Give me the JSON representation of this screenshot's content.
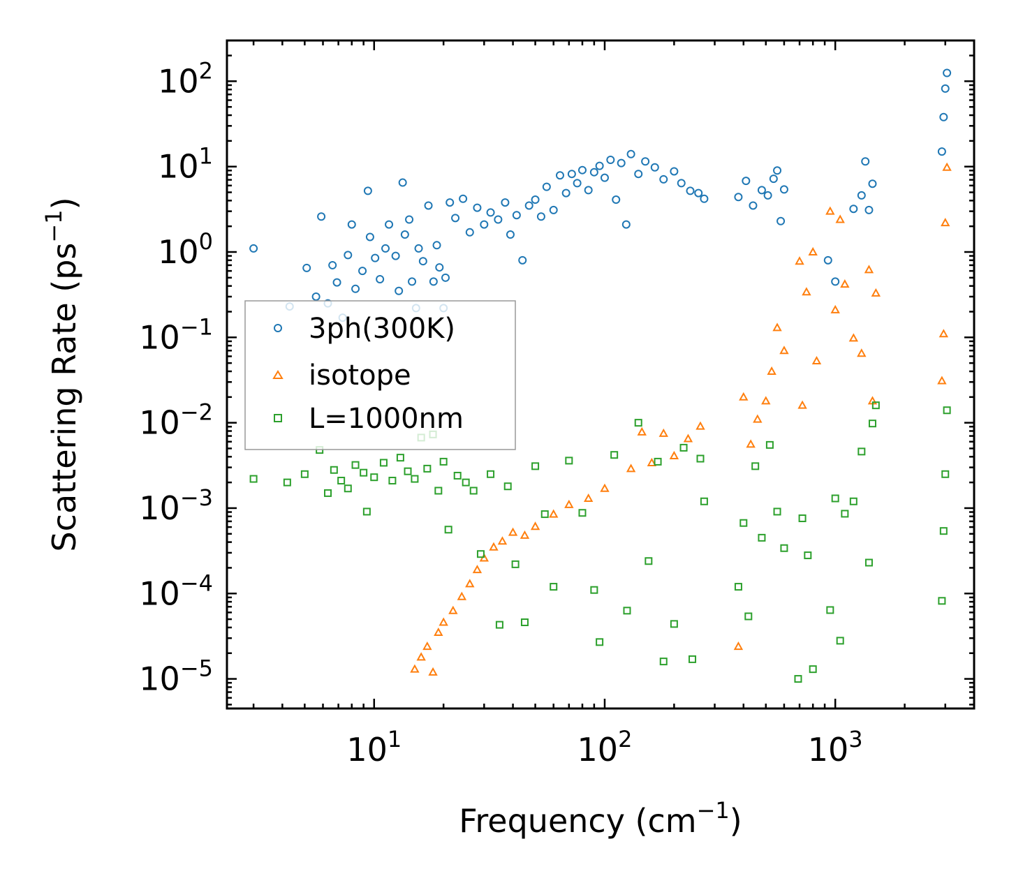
{
  "chart_data": {
    "type": "scatter",
    "title": "",
    "xlabel": "Frequency (cm",
    "xlabel_exp": "−1",
    "ylabel": "Scattering Rate (ps",
    "ylabel_exp": "−1",
    "x_scale": "log",
    "y_scale": "log",
    "xlim": [
      2.3,
      4000
    ],
    "ylim": [
      4.5e-06,
      300
    ],
    "x_ticks": [
      {
        "value": 10,
        "base": "10",
        "exp": "1"
      },
      {
        "value": 100,
        "base": "10",
        "exp": "2"
      },
      {
        "value": 1000,
        "base": "10",
        "exp": "3"
      }
    ],
    "y_ticks": [
      {
        "value": 1e-05,
        "base": "10",
        "exp": "−5"
      },
      {
        "value": 0.0001,
        "base": "10",
        "exp": "−4"
      },
      {
        "value": 0.001,
        "base": "10",
        "exp": "−3"
      },
      {
        "value": 0.01,
        "base": "10",
        "exp": "−2"
      },
      {
        "value": 0.1,
        "base": "10",
        "exp": "−1"
      },
      {
        "value": 1,
        "base": "10",
        "exp": "0"
      },
      {
        "value": 10,
        "base": "10",
        "exp": "1"
      },
      {
        "value": 100,
        "base": "10",
        "exp": "2"
      }
    ],
    "legend_position": "center-left",
    "series": [
      {
        "name": "3ph(300K)",
        "marker": "circle",
        "color": "#1f77b4",
        "points": [
          [
            3.0,
            1.1
          ],
          [
            4.3,
            0.23
          ],
          [
            5.1,
            0.65
          ],
          [
            5.6,
            0.3
          ],
          [
            5.9,
            2.6
          ],
          [
            6.3,
            0.25
          ],
          [
            6.6,
            0.7
          ],
          [
            6.9,
            0.44
          ],
          [
            7.3,
            0.17
          ],
          [
            7.7,
            0.92
          ],
          [
            8.0,
            2.1
          ],
          [
            8.3,
            0.37
          ],
          [
            8.9,
            0.6
          ],
          [
            9.4,
            5.2
          ],
          [
            9.6,
            1.5
          ],
          [
            10.1,
            0.85
          ],
          [
            10.6,
            0.48
          ],
          [
            11.2,
            1.1
          ],
          [
            11.6,
            2.1
          ],
          [
            12.4,
            0.9
          ],
          [
            12.8,
            0.35
          ],
          [
            13.3,
            6.5
          ],
          [
            13.6,
            1.6
          ],
          [
            14.2,
            2.4
          ],
          [
            14.6,
            0.45
          ],
          [
            15.2,
            0.22
          ],
          [
            15.6,
            1.1
          ],
          [
            16.3,
            0.78
          ],
          [
            17.2,
            3.5
          ],
          [
            18.1,
            0.45
          ],
          [
            18.7,
            1.2
          ],
          [
            19.2,
            0.66
          ],
          [
            20.0,
            0.22
          ],
          [
            20.4,
            0.5
          ],
          [
            21.3,
            3.8
          ],
          [
            22.5,
            2.5
          ],
          [
            24.3,
            4.2
          ],
          [
            26.0,
            1.7
          ],
          [
            28.0,
            3.3
          ],
          [
            30.0,
            2.1
          ],
          [
            32.0,
            2.9
          ],
          [
            34.5,
            2.4
          ],
          [
            37.0,
            3.8
          ],
          [
            39.0,
            1.6
          ],
          [
            41.5,
            2.7
          ],
          [
            44.0,
            0.8
          ],
          [
            47.0,
            3.5
          ],
          [
            50.0,
            4.1
          ],
          [
            53.0,
            2.6
          ],
          [
            56.0,
            5.8
          ],
          [
            60.0,
            3.1
          ],
          [
            64.0,
            7.9
          ],
          [
            68.0,
            4.9
          ],
          [
            72.0,
            8.2
          ],
          [
            76.0,
            6.4
          ],
          [
            80.0,
            9.1
          ],
          [
            85.0,
            5.3
          ],
          [
            90.0,
            8.6
          ],
          [
            95.0,
            10.2
          ],
          [
            100.0,
            7.4
          ],
          [
            106.0,
            12.0
          ],
          [
            112.0,
            4.1
          ],
          [
            118.0,
            11.0
          ],
          [
            124.0,
            2.1
          ],
          [
            130.0,
            14.0
          ],
          [
            140.0,
            8.2
          ],
          [
            150.0,
            11.5
          ],
          [
            165.0,
            9.8
          ],
          [
            180.0,
            7.1
          ],
          [
            200.0,
            8.8
          ],
          [
            215.0,
            6.4
          ],
          [
            235.0,
            5.2
          ],
          [
            255.0,
            4.9
          ],
          [
            270.0,
            4.2
          ],
          [
            380.0,
            4.4
          ],
          [
            410.0,
            6.8
          ],
          [
            440.0,
            3.5
          ],
          [
            480.0,
            5.3
          ],
          [
            510.0,
            4.6
          ],
          [
            540.0,
            7.2
          ],
          [
            560.0,
            9.0
          ],
          [
            580.0,
            2.3
          ],
          [
            600.0,
            5.4
          ],
          [
            930.0,
            0.8
          ],
          [
            1000.0,
            0.45
          ],
          [
            1200.0,
            3.2
          ],
          [
            1300.0,
            4.6
          ],
          [
            1350.0,
            11.5
          ],
          [
            1400.0,
            3.1
          ],
          [
            1450.0,
            6.3
          ],
          [
            2900.0,
            15.0
          ],
          [
            2950.0,
            38.0
          ],
          [
            3000.0,
            82.0
          ],
          [
            3050.0,
            125.0
          ]
        ]
      },
      {
        "name": "isotope",
        "marker": "triangle",
        "color": "#ff7f0e",
        "points": [
          [
            15.0,
            1.3e-05
          ],
          [
            16.0,
            1.8e-05
          ],
          [
            17.0,
            2.4e-05
          ],
          [
            18.0,
            1.2e-05
          ],
          [
            19.0,
            3.5e-05
          ],
          [
            20.0,
            4.6e-05
          ],
          [
            22.0,
            6.3e-05
          ],
          [
            24.0,
            9.2e-05
          ],
          [
            26.0,
            0.00013
          ],
          [
            28.0,
            0.00019
          ],
          [
            30.0,
            0.00026
          ],
          [
            33.0,
            0.00035
          ],
          [
            36.0,
            0.00041
          ],
          [
            40.0,
            0.00052
          ],
          [
            45.0,
            0.00048
          ],
          [
            50.0,
            0.00061
          ],
          [
            60.0,
            0.00085
          ],
          [
            70.0,
            0.0011
          ],
          [
            85.0,
            0.0013
          ],
          [
            100.0,
            0.0017
          ],
          [
            130.0,
            0.0029
          ],
          [
            145.0,
            0.0078
          ],
          [
            160.0,
            0.0034
          ],
          [
            180.0,
            0.0075
          ],
          [
            200.0,
            0.0041
          ],
          [
            230.0,
            0.0065
          ],
          [
            260.0,
            0.0091
          ],
          [
            380.0,
            2.4e-05
          ],
          [
            400.0,
            0.02
          ],
          [
            430.0,
            0.0056
          ],
          [
            460.0,
            0.011
          ],
          [
            500.0,
            0.018
          ],
          [
            530.0,
            0.04
          ],
          [
            560.0,
            0.13
          ],
          [
            600.0,
            0.07
          ],
          [
            700.0,
            0.78
          ],
          [
            720.0,
            0.016
          ],
          [
            750.0,
            0.34
          ],
          [
            800.0,
            1.0
          ],
          [
            830.0,
            0.053
          ],
          [
            950.0,
            3.0
          ],
          [
            1000.0,
            0.21
          ],
          [
            1050.0,
            2.4
          ],
          [
            1100.0,
            0.42
          ],
          [
            1200.0,
            0.098
          ],
          [
            1300.0,
            0.065
          ],
          [
            1400.0,
            0.62
          ],
          [
            1450.0,
            0.018
          ],
          [
            1500.0,
            0.33
          ],
          [
            2900.0,
            0.031
          ],
          [
            2950.0,
            0.11
          ],
          [
            3000.0,
            2.2
          ],
          [
            3050.0,
            9.8
          ]
        ]
      },
      {
        "name": "L=1000nm",
        "marker": "square",
        "color": "#2ca02c",
        "points": [
          [
            3.0,
            0.0022
          ],
          [
            4.2,
            0.002
          ],
          [
            5.0,
            0.0025
          ],
          [
            5.8,
            0.0048
          ],
          [
            6.3,
            0.0015
          ],
          [
            6.7,
            0.0028
          ],
          [
            7.2,
            0.0021
          ],
          [
            7.7,
            0.0017
          ],
          [
            8.3,
            0.0032
          ],
          [
            9.0,
            0.0026
          ],
          [
            9.3,
            0.00091
          ],
          [
            10.0,
            0.0023
          ],
          [
            11.0,
            0.0034
          ],
          [
            12.0,
            0.0021
          ],
          [
            13.0,
            0.0039
          ],
          [
            14.0,
            0.0027
          ],
          [
            15.0,
            0.0022
          ],
          [
            16.0,
            0.0067
          ],
          [
            17.0,
            0.0029
          ],
          [
            18.0,
            0.0073
          ],
          [
            19.0,
            0.0016
          ],
          [
            20.0,
            0.0035
          ],
          [
            21.0,
            0.00056
          ],
          [
            23.0,
            0.0024
          ],
          [
            25.0,
            0.002
          ],
          [
            27.0,
            0.0016
          ],
          [
            29.0,
            0.00029
          ],
          [
            32.0,
            0.0025
          ],
          [
            35.0,
            4.3e-05
          ],
          [
            38.0,
            0.0018
          ],
          [
            41.0,
            0.00022
          ],
          [
            45.0,
            4.6e-05
          ],
          [
            50.0,
            0.0031
          ],
          [
            55.0,
            0.00085
          ],
          [
            60.0,
            0.00012
          ],
          [
            70.0,
            0.0036
          ],
          [
            80.0,
            0.00088
          ],
          [
            90.0,
            0.00011
          ],
          [
            95.0,
            2.7e-05
          ],
          [
            110.0,
            0.0042
          ],
          [
            125.0,
            6.3e-05
          ],
          [
            140.0,
            0.01
          ],
          [
            155.0,
            0.00024
          ],
          [
            170.0,
            0.0035
          ],
          [
            180.0,
            1.6e-05
          ],
          [
            200.0,
            4.4e-05
          ],
          [
            220.0,
            0.0051
          ],
          [
            240.0,
            1.7e-05
          ],
          [
            260.0,
            0.0038
          ],
          [
            270.0,
            0.0012
          ],
          [
            380.0,
            0.00012
          ],
          [
            400.0,
            0.00067
          ],
          [
            420.0,
            5.4e-05
          ],
          [
            450.0,
            0.0031
          ],
          [
            480.0,
            0.00045
          ],
          [
            520.0,
            0.0055
          ],
          [
            560.0,
            0.00091
          ],
          [
            600.0,
            0.00034
          ],
          [
            690.0,
            1e-05
          ],
          [
            720.0,
            0.00076
          ],
          [
            760.0,
            0.00028
          ],
          [
            800.0,
            1.3e-05
          ],
          [
            950.0,
            6.4e-05
          ],
          [
            1000.0,
            0.0013
          ],
          [
            1050.0,
            2.8e-05
          ],
          [
            1100.0,
            0.00086
          ],
          [
            1200.0,
            0.0012
          ],
          [
            1300.0,
            0.0046
          ],
          [
            1400.0,
            0.00023
          ],
          [
            1450.0,
            0.0098
          ],
          [
            1500.0,
            0.016
          ],
          [
            2900.0,
            8.2e-05
          ],
          [
            2950.0,
            0.00054
          ],
          [
            3000.0,
            0.0025
          ],
          [
            3050.0,
            0.014
          ]
        ]
      }
    ]
  }
}
